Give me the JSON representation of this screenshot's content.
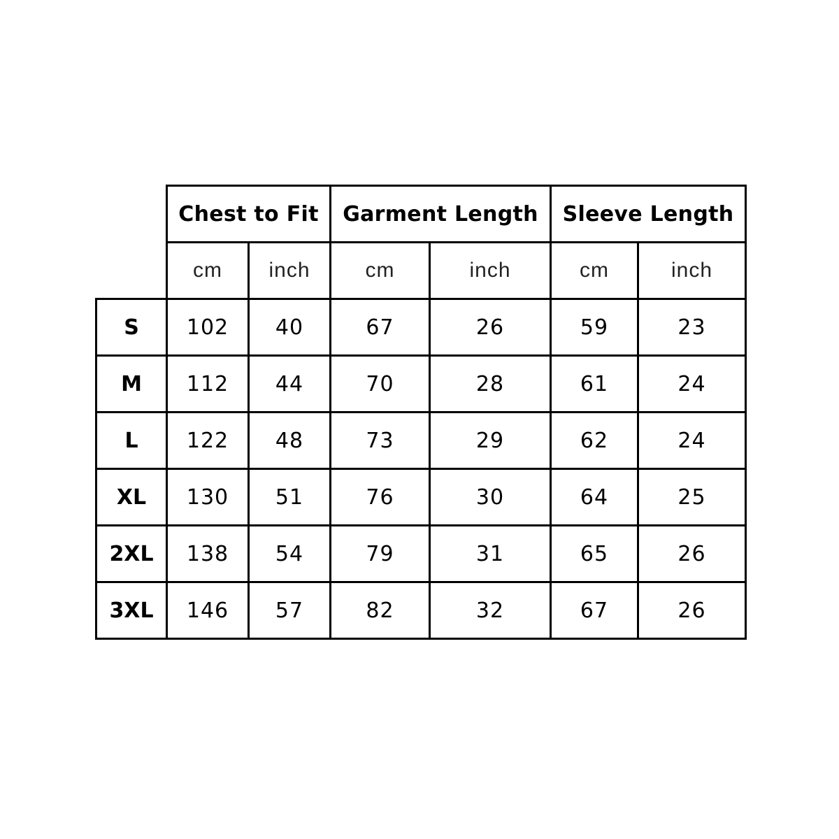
{
  "table": {
    "groups": [
      "Chest to Fit",
      "Garment Length",
      "Sleeve Length"
    ],
    "units": [
      "cm",
      "inch",
      "cm",
      "inch",
      "cm",
      "inch"
    ],
    "rows": [
      {
        "size": "S",
        "values": [
          "102",
          "40",
          "67",
          "26",
          "59",
          "23"
        ]
      },
      {
        "size": "M",
        "values": [
          "112",
          "44",
          "70",
          "28",
          "61",
          "24"
        ]
      },
      {
        "size": "L",
        "values": [
          "122",
          "48",
          "73",
          "29",
          "62",
          "24"
        ]
      },
      {
        "size": "XL",
        "values": [
          "130",
          "51",
          "76",
          "30",
          "64",
          "25"
        ]
      },
      {
        "size": "2XL",
        "values": [
          "138",
          "54",
          "79",
          "31",
          "65",
          "26"
        ]
      },
      {
        "size": "3XL",
        "values": [
          "146",
          "57",
          "82",
          "32",
          "67",
          "26"
        ]
      }
    ]
  }
}
